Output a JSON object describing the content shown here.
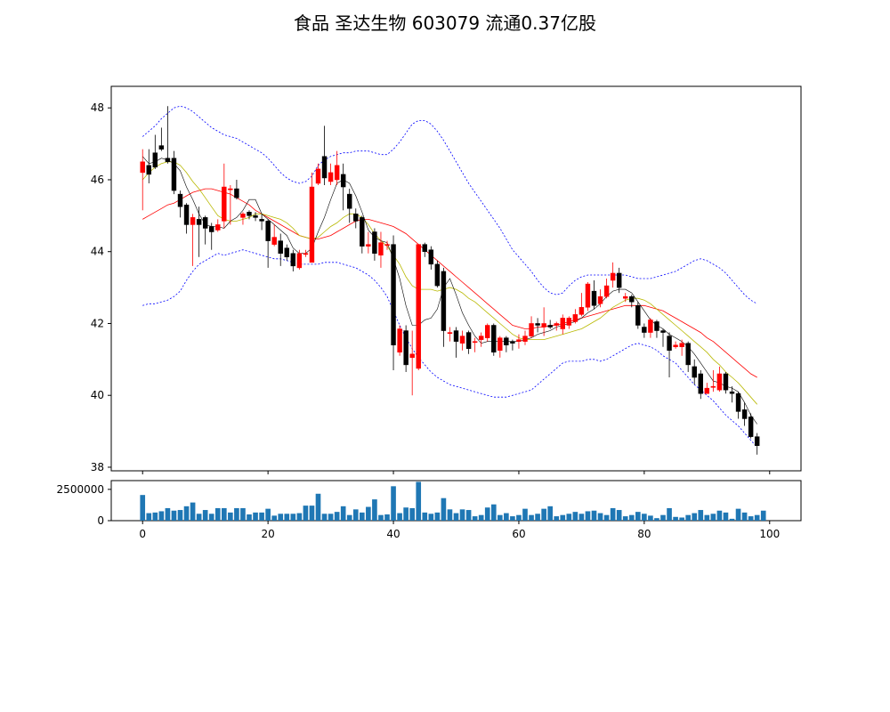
{
  "title": "食品 圣达生物 603079 流通0.37亿股",
  "chart_data": [
    {
      "type": "candlestick",
      "ylim": [
        37.9,
        48.6
      ],
      "xlim": [
        -5,
        105
      ],
      "yticks": [
        38,
        40,
        42,
        44,
        46,
        48
      ],
      "xticks": [
        0,
        20,
        40,
        60,
        80,
        100
      ],
      "colors": {
        "up": "#ff0000",
        "down": "#000000",
        "ma5": "#000000",
        "ma10": "#b8b800",
        "ma20": "#ff0000",
        "boll": "#0000ff"
      },
      "ohlc": [
        [
          46.2,
          46.5,
          46.85,
          45.15
        ],
        [
          46.4,
          46.15,
          46.85,
          45.9
        ],
        [
          46.75,
          46.35,
          47.25,
          46.3
        ],
        [
          46.95,
          46.85,
          47.45,
          46.8
        ],
        [
          46.6,
          46.5,
          48.05,
          46.45
        ],
        [
          46.6,
          45.7,
          46.8,
          45.6
        ],
        [
          45.6,
          45.25,
          45.7,
          44.95
        ],
        [
          45.3,
          44.75,
          45.35,
          44.5
        ],
        [
          44.75,
          44.95,
          45.05,
          43.6
        ],
        [
          44.9,
          44.75,
          45.25,
          43.85
        ],
        [
          44.95,
          44.65,
          45.0,
          44.2
        ],
        [
          44.7,
          44.55,
          44.8,
          44.05
        ],
        [
          44.6,
          44.75,
          44.9,
          44.55
        ],
        [
          44.85,
          45.8,
          46.45,
          44.65
        ],
        [
          45.75,
          45.75,
          45.85,
          44.75
        ],
        [
          45.75,
          45.5,
          46.0,
          45.45
        ],
        [
          44.95,
          45.05,
          45.1,
          44.75
        ],
        [
          45.1,
          45.0,
          45.15,
          44.9
        ],
        [
          45.0,
          44.95,
          45.1,
          44.85
        ],
        [
          44.9,
          44.85,
          45.05,
          44.6
        ],
        [
          44.85,
          44.3,
          44.9,
          43.55
        ],
        [
          44.2,
          44.4,
          44.75,
          44.15
        ],
        [
          44.3,
          43.95,
          44.5,
          43.6
        ],
        [
          44.1,
          43.85,
          44.2,
          43.75
        ],
        [
          43.95,
          43.6,
          44.05,
          43.45
        ],
        [
          43.55,
          43.95,
          44.05,
          43.5
        ],
        [
          43.95,
          43.95,
          44.05,
          43.85
        ],
        [
          43.7,
          45.8,
          46.2,
          43.7
        ],
        [
          45.9,
          46.3,
          46.45,
          45.85
        ],
        [
          46.65,
          46.05,
          47.5,
          45.85
        ],
        [
          45.95,
          46.2,
          46.45,
          45.85
        ],
        [
          46.0,
          46.4,
          46.8,
          45.85
        ],
        [
          46.15,
          45.8,
          46.45,
          45.15
        ],
        [
          45.6,
          45.2,
          45.75,
          44.8
        ],
        [
          45.05,
          44.85,
          45.2,
          44.65
        ],
        [
          44.95,
          44.15,
          45.0,
          43.95
        ],
        [
          44.15,
          44.2,
          44.55,
          43.95
        ],
        [
          44.55,
          43.95,
          44.65,
          43.75
        ],
        [
          43.9,
          44.25,
          44.55,
          43.55
        ],
        [
          44.2,
          44.2,
          44.3,
          44.05
        ],
        [
          44.2,
          41.4,
          44.45,
          40.7
        ],
        [
          41.2,
          41.85,
          41.95,
          41.1
        ],
        [
          41.8,
          40.85,
          41.95,
          40.65
        ],
        [
          41.05,
          41.15,
          41.8,
          40.0
        ],
        [
          40.75,
          44.2,
          44.2,
          40.7
        ],
        [
          44.2,
          44.0,
          44.25,
          43.85
        ],
        [
          44.05,
          43.65,
          44.15,
          43.5
        ],
        [
          43.65,
          43.05,
          43.75,
          43.0
        ],
        [
          43.45,
          41.8,
          43.55,
          41.35
        ],
        [
          41.75,
          41.75,
          41.9,
          41.5
        ],
        [
          41.8,
          41.5,
          41.9,
          41.05
        ],
        [
          41.45,
          41.65,
          41.8,
          41.25
        ],
        [
          41.75,
          41.3,
          41.8,
          41.15
        ],
        [
          41.5,
          41.5,
          41.6,
          41.2
        ],
        [
          41.55,
          41.65,
          41.75,
          41.35
        ],
        [
          41.6,
          41.95,
          42.0,
          41.5
        ],
        [
          41.95,
          41.2,
          42.0,
          41.1
        ],
        [
          41.25,
          41.6,
          41.65,
          41.05
        ],
        [
          41.6,
          41.4,
          41.65,
          41.2
        ],
        [
          41.5,
          41.45,
          41.55,
          41.25
        ],
        [
          41.5,
          41.55,
          41.7,
          41.3
        ],
        [
          41.5,
          41.65,
          41.8,
          41.4
        ],
        [
          41.65,
          42.0,
          42.2,
          41.6
        ],
        [
          42.0,
          41.95,
          42.15,
          41.75
        ],
        [
          41.9,
          42.0,
          42.45,
          41.65
        ],
        [
          41.95,
          41.9,
          42.1,
          41.85
        ],
        [
          41.95,
          42.0,
          42.05,
          41.8
        ],
        [
          41.85,
          42.15,
          42.25,
          41.7
        ],
        [
          41.95,
          42.15,
          42.2,
          41.85
        ],
        [
          42.05,
          42.25,
          42.4,
          42.0
        ],
        [
          42.25,
          42.45,
          42.85,
          42.2
        ],
        [
          42.45,
          43.1,
          43.15,
          42.35
        ],
        [
          42.9,
          42.5,
          43.2,
          42.4
        ],
        [
          42.55,
          42.75,
          42.95,
          42.45
        ],
        [
          42.75,
          43.05,
          43.25,
          42.7
        ],
        [
          43.2,
          43.4,
          43.7,
          43.0
        ],
        [
          43.4,
          43.0,
          43.55,
          42.85
        ],
        [
          42.7,
          42.75,
          42.85,
          42.6
        ],
        [
          42.75,
          42.6,
          42.8,
          42.45
        ],
        [
          42.5,
          41.95,
          42.6,
          41.85
        ],
        [
          41.9,
          41.75,
          42.0,
          41.6
        ],
        [
          41.75,
          42.1,
          42.15,
          41.6
        ],
        [
          42.05,
          41.8,
          42.1,
          41.6
        ],
        [
          41.8,
          41.75,
          41.85,
          41.35
        ],
        [
          41.65,
          41.25,
          41.75,
          40.5
        ],
        [
          41.35,
          41.4,
          41.5,
          41.3
        ],
        [
          41.35,
          41.45,
          41.55,
          41.1
        ],
        [
          41.45,
          40.85,
          41.5,
          40.65
        ],
        [
          40.8,
          40.5,
          41.0,
          40.3
        ],
        [
          40.6,
          40.05,
          40.7,
          39.9
        ],
        [
          40.05,
          40.2,
          40.35,
          40.05
        ],
        [
          40.25,
          40.25,
          40.7,
          40.1
        ],
        [
          40.15,
          40.6,
          40.8,
          40.1
        ],
        [
          40.6,
          40.15,
          40.65,
          40.05
        ],
        [
          40.1,
          40.05,
          40.25,
          39.8
        ],
        [
          40.05,
          39.55,
          40.1,
          39.35
        ],
        [
          39.6,
          39.35,
          39.8,
          39.15
        ],
        [
          39.4,
          38.85,
          39.5,
          38.8
        ],
        [
          38.85,
          38.6,
          38.95,
          38.35
        ]
      ],
      "ma5": [
        46.65,
        46.45,
        46.5,
        46.6,
        46.55,
        46.45,
        46.25,
        45.8,
        45.45,
        45.05,
        44.75,
        44.7,
        44.7,
        44.65,
        44.85,
        44.95,
        45.15,
        45.45,
        45.45,
        45.05,
        44.9,
        44.75,
        44.6,
        44.45,
        44.1,
        43.95,
        43.95,
        44.1,
        44.55,
        44.95,
        45.45,
        45.9,
        46.0,
        45.9,
        45.55,
        45.1,
        44.6,
        44.4,
        44.3,
        44.25,
        43.8,
        43.25,
        42.5,
        41.95,
        41.95,
        42.1,
        42.15,
        42.4,
        43.0,
        43.25,
        42.8,
        42.3,
        41.95,
        41.65,
        41.45,
        41.5,
        41.5,
        41.5,
        41.5,
        41.5,
        41.5,
        41.55,
        41.6,
        41.7,
        41.75,
        41.8,
        41.9,
        41.95,
        42.0,
        42.05,
        42.15,
        42.3,
        42.4,
        42.55,
        42.75,
        42.9,
        42.95,
        42.95,
        42.85,
        42.6,
        42.35,
        42.1,
        41.95,
        41.85,
        41.7,
        41.6,
        41.5,
        41.35,
        41.15,
        40.9,
        40.65,
        40.4,
        40.35,
        40.25,
        40.2,
        40.1,
        39.8,
        39.45,
        39.2
      ],
      "ma10": [
        46.0,
        46.2,
        46.35,
        46.45,
        46.5,
        46.5,
        46.4,
        46.2,
        45.95,
        45.75,
        45.5,
        45.25,
        45.0,
        44.9,
        44.85,
        44.85,
        44.9,
        44.95,
        45.05,
        45.05,
        45.0,
        44.95,
        44.9,
        44.8,
        44.65,
        44.45,
        44.4,
        44.35,
        44.4,
        44.55,
        44.7,
        44.8,
        44.95,
        45.05,
        45.05,
        44.95,
        44.75,
        44.5,
        44.3,
        44.15,
        43.9,
        43.65,
        43.3,
        43.05,
        42.95,
        42.95,
        42.95,
        42.9,
        42.95,
        43.0,
        42.95,
        42.85,
        42.7,
        42.6,
        42.45,
        42.3,
        42.15,
        42.0,
        41.85,
        41.7,
        41.6,
        41.55,
        41.55,
        41.55,
        41.55,
        41.6,
        41.65,
        41.7,
        41.75,
        41.8,
        41.85,
        41.95,
        42.05,
        42.15,
        42.3,
        42.45,
        42.55,
        42.65,
        42.7,
        42.7,
        42.65,
        42.55,
        42.4,
        42.25,
        42.1,
        41.95,
        41.8,
        41.65,
        41.5,
        41.35,
        41.2,
        41.0,
        40.85,
        40.65,
        40.5,
        40.35,
        40.15,
        39.95,
        39.75
      ],
      "ma20": [
        44.9,
        45.0,
        45.1,
        45.2,
        45.3,
        45.35,
        45.45,
        45.55,
        45.65,
        45.7,
        45.75,
        45.75,
        45.7,
        45.65,
        45.6,
        45.5,
        45.4,
        45.3,
        45.15,
        45.05,
        44.95,
        44.85,
        44.75,
        44.65,
        44.55,
        44.45,
        44.4,
        44.35,
        44.35,
        44.4,
        44.45,
        44.55,
        44.65,
        44.75,
        44.85,
        44.9,
        44.9,
        44.85,
        44.8,
        44.75,
        44.7,
        44.6,
        44.5,
        44.35,
        44.2,
        44.05,
        43.9,
        43.75,
        43.6,
        43.45,
        43.3,
        43.15,
        43.0,
        42.85,
        42.7,
        42.55,
        42.4,
        42.25,
        42.1,
        41.95,
        41.9,
        41.85,
        41.85,
        41.9,
        41.9,
        41.95,
        41.95,
        42.0,
        42.05,
        42.1,
        42.15,
        42.2,
        42.25,
        42.3,
        42.35,
        42.4,
        42.45,
        42.5,
        42.5,
        42.5,
        42.5,
        42.45,
        42.4,
        42.35,
        42.25,
        42.15,
        42.05,
        41.95,
        41.85,
        41.75,
        41.6,
        41.5,
        41.35,
        41.2,
        41.05,
        40.9,
        40.75,
        40.6,
        40.5
      ],
      "boll_upper": [
        47.2,
        47.35,
        47.5,
        47.7,
        47.85,
        48.0,
        48.05,
        48.0,
        47.9,
        47.75,
        47.6,
        47.45,
        47.35,
        47.25,
        47.2,
        47.15,
        47.05,
        46.95,
        46.85,
        46.75,
        46.6,
        46.4,
        46.2,
        46.05,
        45.95,
        45.9,
        45.95,
        46.1,
        46.4,
        46.55,
        46.65,
        46.7,
        46.75,
        46.75,
        46.8,
        46.8,
        46.8,
        46.75,
        46.7,
        46.7,
        46.85,
        47.05,
        47.3,
        47.55,
        47.65,
        47.65,
        47.55,
        47.35,
        47.1,
        46.8,
        46.5,
        46.2,
        45.9,
        45.65,
        45.4,
        45.15,
        44.9,
        44.65,
        44.35,
        44.05,
        43.85,
        43.65,
        43.45,
        43.2,
        43.0,
        42.85,
        42.8,
        42.85,
        43.05,
        43.2,
        43.3,
        43.35,
        43.35,
        43.35,
        43.35,
        43.35,
        43.35,
        43.35,
        43.3,
        43.25,
        43.25,
        43.25,
        43.3,
        43.35,
        43.4,
        43.45,
        43.55,
        43.65,
        43.75,
        43.8,
        43.75,
        43.65,
        43.55,
        43.4,
        43.2,
        43.0,
        42.8,
        42.65,
        42.55
      ],
      "boll_lower": [
        42.5,
        42.55,
        42.55,
        42.6,
        42.65,
        42.75,
        42.9,
        43.2,
        43.45,
        43.65,
        43.75,
        43.85,
        43.95,
        43.9,
        43.95,
        44.0,
        44.05,
        44.0,
        43.95,
        43.9,
        43.85,
        43.8,
        43.8,
        43.75,
        43.7,
        43.65,
        43.65,
        43.65,
        43.65,
        43.7,
        43.7,
        43.7,
        43.65,
        43.6,
        43.55,
        43.45,
        43.35,
        43.2,
        43.0,
        42.75,
        42.35,
        41.95,
        41.6,
        41.3,
        41.05,
        40.85,
        40.65,
        40.5,
        40.4,
        40.3,
        40.25,
        40.2,
        40.15,
        40.1,
        40.05,
        40.0,
        39.95,
        39.95,
        39.95,
        40.0,
        40.05,
        40.1,
        40.15,
        40.3,
        40.45,
        40.6,
        40.75,
        40.9,
        40.95,
        40.95,
        40.95,
        41.0,
        41.0,
        40.95,
        41.0,
        41.1,
        41.2,
        41.3,
        41.4,
        41.45,
        41.4,
        41.35,
        41.25,
        41.1,
        41.0,
        40.9,
        40.7,
        40.5,
        40.3,
        40.15,
        40.0,
        39.85,
        39.65,
        39.45,
        39.3,
        39.15,
        38.95,
        38.75,
        38.55
      ]
    },
    {
      "type": "bar",
      "yticks": [
        0,
        2500000
      ],
      "ylim": [
        0,
        3200000
      ],
      "color": "#1f77b4",
      "volume": [
        2050000,
        600000,
        650000,
        750000,
        1000000,
        800000,
        850000,
        1150000,
        1450000,
        550000,
        850000,
        550000,
        1000000,
        1000000,
        650000,
        1000000,
        1000000,
        500000,
        650000,
        650000,
        950000,
        400000,
        550000,
        550000,
        550000,
        600000,
        1200000,
        1200000,
        2150000,
        550000,
        550000,
        700000,
        1150000,
        450000,
        900000,
        650000,
        1100000,
        1700000,
        450000,
        500000,
        2750000,
        600000,
        1050000,
        1000000,
        3100000,
        650000,
        550000,
        650000,
        1800000,
        900000,
        600000,
        900000,
        850000,
        350000,
        450000,
        1050000,
        1300000,
        450000,
        600000,
        350000,
        450000,
        950000,
        450000,
        550000,
        950000,
        1150000,
        350000,
        450000,
        550000,
        700000,
        550000,
        750000,
        800000,
        600000,
        450000,
        1000000,
        850000,
        350000,
        450000,
        700000,
        550000,
        400000,
        200000,
        450000,
        1000000,
        300000,
        250000,
        450000,
        600000,
        850000,
        450000,
        550000,
        800000,
        650000,
        150000,
        950000,
        650000,
        350000,
        450000,
        800000
      ]
    }
  ]
}
